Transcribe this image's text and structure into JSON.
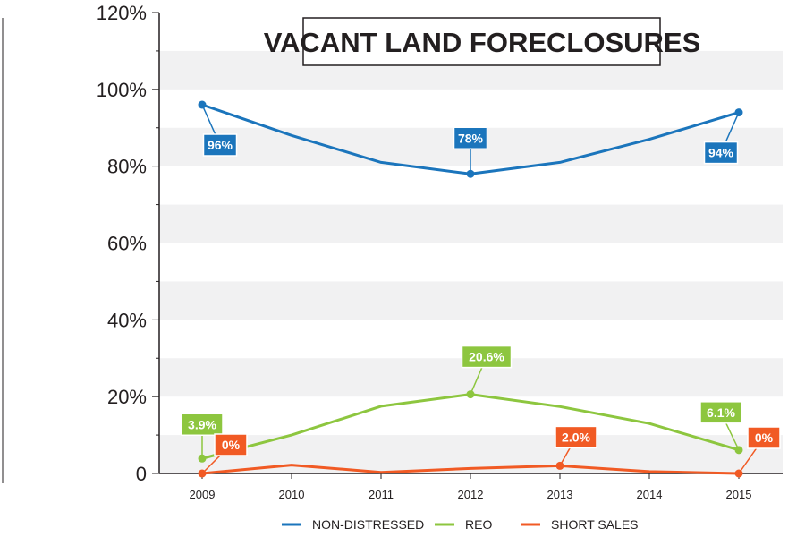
{
  "chart_data": {
    "type": "line",
    "title": "VACANT LAND FORECLOSURES",
    "x": [
      "2009",
      "2010",
      "2011",
      "2012",
      "2013",
      "2014",
      "2015"
    ],
    "y_ticks": [
      "0",
      "20%",
      "40%",
      "60%",
      "80%",
      "100%",
      "120%"
    ],
    "ylim": [
      0,
      120
    ],
    "grid": "alternating horizontal bands",
    "legend_position": "bottom",
    "series": [
      {
        "name": "NON-DISTRESSED",
        "color": "#1b75bc",
        "values": [
          96,
          88,
          81,
          78,
          81,
          87,
          94
        ],
        "callouts": [
          {
            "index": 0,
            "label": "96%"
          },
          {
            "index": 3,
            "label": "78%"
          },
          {
            "index": 6,
            "label": "94%"
          }
        ]
      },
      {
        "name": "REO",
        "color": "#8dc63f",
        "values": [
          3.9,
          10,
          17.5,
          20.6,
          17.4,
          13,
          6.1
        ],
        "callouts": [
          {
            "index": 0,
            "label": "3.9%"
          },
          {
            "index": 3,
            "label": "20.6%"
          },
          {
            "index": 6,
            "label": "6.1%"
          }
        ]
      },
      {
        "name": "SHORT SALES",
        "color": "#f15a24",
        "values": [
          0,
          2.2,
          0.3,
          1.3,
          2.0,
          0.5,
          0
        ],
        "callouts": [
          {
            "index": 0,
            "label": "0%"
          },
          {
            "index": 4,
            "label": "2.0%"
          },
          {
            "index": 6,
            "label": "0%"
          }
        ]
      }
    ]
  }
}
